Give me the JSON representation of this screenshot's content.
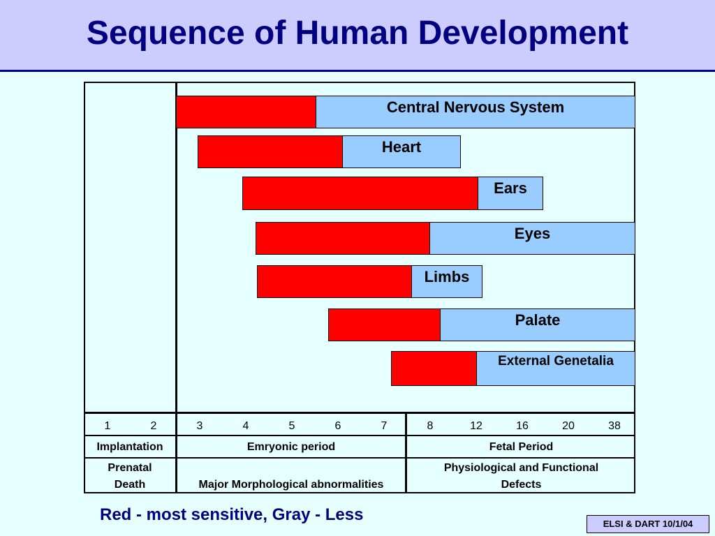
{
  "title": "Sequence of Human Development",
  "bars": [
    {
      "label": "Central Nervous System"
    },
    {
      "label": "Heart"
    },
    {
      "label": "Ears"
    },
    {
      "label": "Eyes"
    },
    {
      "label": "Limbs"
    },
    {
      "label": "Palate"
    },
    {
      "label": "External Genetalia"
    }
  ],
  "weeks": [
    "1",
    "2",
    "3",
    "4",
    "5",
    "6",
    "7",
    "8",
    "12",
    "16",
    "20",
    "38"
  ],
  "periods": {
    "implantation": "Implantation",
    "embryonic": "Emryonic period",
    "fetal": "Fetal Period"
  },
  "effects": {
    "prenatal_death_line1": "Prenatal",
    "prenatal_death_line2": "Death",
    "major": "Major Morphological abnormalities",
    "physio_line1": "Physiological and Functional",
    "physio_line2": "Defects"
  },
  "legend": "Red - most sensitive, Gray - Less",
  "footer": "ELSI & DART 10/1/04",
  "colors": {
    "sensitive": "#ff0000",
    "less": "#99ccff",
    "title": "#000080"
  }
}
